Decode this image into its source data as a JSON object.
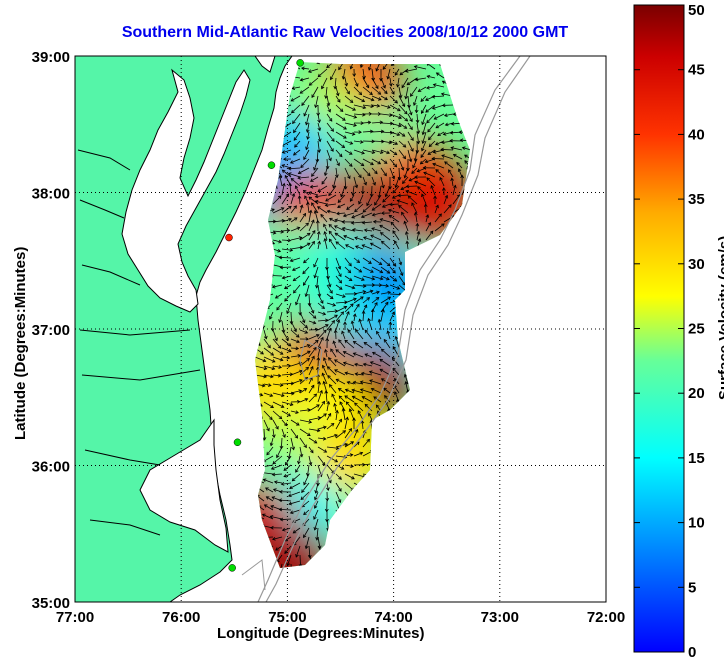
{
  "title": "Southern Mid-Atlantic Raw Velocities 2008/10/12 2000 GMT",
  "xlabel": "Longitude (Degrees:Minutes)",
  "ylabel": "Latitude (Degrees:Minutes)",
  "colorbar": {
    "label": "Surface Velocity (cm/s)",
    "ticks": [
      "0",
      "5",
      "10",
      "15",
      "20",
      "25",
      "30",
      "35",
      "40",
      "45",
      "50"
    ],
    "min": 0,
    "max": 50
  },
  "axes": {
    "x_ticks": [
      "77:00",
      "76:00",
      "75:00",
      "74:00",
      "73:00",
      "72:00"
    ],
    "y_ticks": [
      "39:00",
      "38:00",
      "37:00",
      "36:00",
      "35:00"
    ],
    "lon_range": [
      -77,
      -72
    ],
    "lat_range": [
      35,
      39
    ],
    "grid": true
  },
  "colors": {
    "land": "#55f5a8",
    "title": "#0000ee",
    "station": "#00dd00",
    "station_alt": "#ff2200"
  },
  "stations": [
    {
      "lon": -74.88,
      "lat": 38.95,
      "color": "station"
    },
    {
      "lon": -75.15,
      "lat": 38.2,
      "color": "station"
    },
    {
      "lon": -75.55,
      "lat": 37.67,
      "color": "station_alt"
    },
    {
      "lon": -75.47,
      "lat": 36.17,
      "color": "station"
    },
    {
      "lon": -75.52,
      "lat": 35.25,
      "color": "station"
    }
  ],
  "velocity_regions": [
    {
      "lon": -74.3,
      "lat": 38.8,
      "speed": 40
    },
    {
      "lon": -74.6,
      "lat": 38.55,
      "speed": 25
    },
    {
      "lon": -74.95,
      "lat": 38.3,
      "speed": 12
    },
    {
      "lon": -75.1,
      "lat": 38.05,
      "speed": 10
    },
    {
      "lon": -74.2,
      "lat": 38.3,
      "speed": 22
    },
    {
      "lon": -73.8,
      "lat": 38.1,
      "speed": 38
    },
    {
      "lon": -74.3,
      "lat": 37.9,
      "speed": 48
    },
    {
      "lon": -74.8,
      "lat": 37.85,
      "speed": 42
    },
    {
      "lon": -73.6,
      "lat": 37.95,
      "speed": 44
    },
    {
      "lon": -75.0,
      "lat": 37.5,
      "speed": 22
    },
    {
      "lon": -74.5,
      "lat": 37.5,
      "speed": 18
    },
    {
      "lon": -74.1,
      "lat": 37.3,
      "speed": 8
    },
    {
      "lon": -74.6,
      "lat": 37.1,
      "speed": 18
    },
    {
      "lon": -75.1,
      "lat": 37.0,
      "speed": 22
    },
    {
      "lon": -74.1,
      "lat": 36.9,
      "speed": 12
    },
    {
      "lon": -74.8,
      "lat": 36.75,
      "speed": 45
    },
    {
      "lon": -74.2,
      "lat": 36.6,
      "speed": 48
    },
    {
      "lon": -75.2,
      "lat": 36.6,
      "speed": 30
    },
    {
      "lon": -74.6,
      "lat": 36.4,
      "speed": 28
    },
    {
      "lon": -74.95,
      "lat": 36.1,
      "speed": 25
    },
    {
      "lon": -74.4,
      "lat": 36.05,
      "speed": 30
    },
    {
      "lon": -75.15,
      "lat": 35.8,
      "speed": 20
    },
    {
      "lon": -74.85,
      "lat": 35.65,
      "speed": 15
    },
    {
      "lon": -75.3,
      "lat": 35.6,
      "speed": 46
    },
    {
      "lon": -74.95,
      "lat": 35.3,
      "speed": 48
    }
  ]
}
